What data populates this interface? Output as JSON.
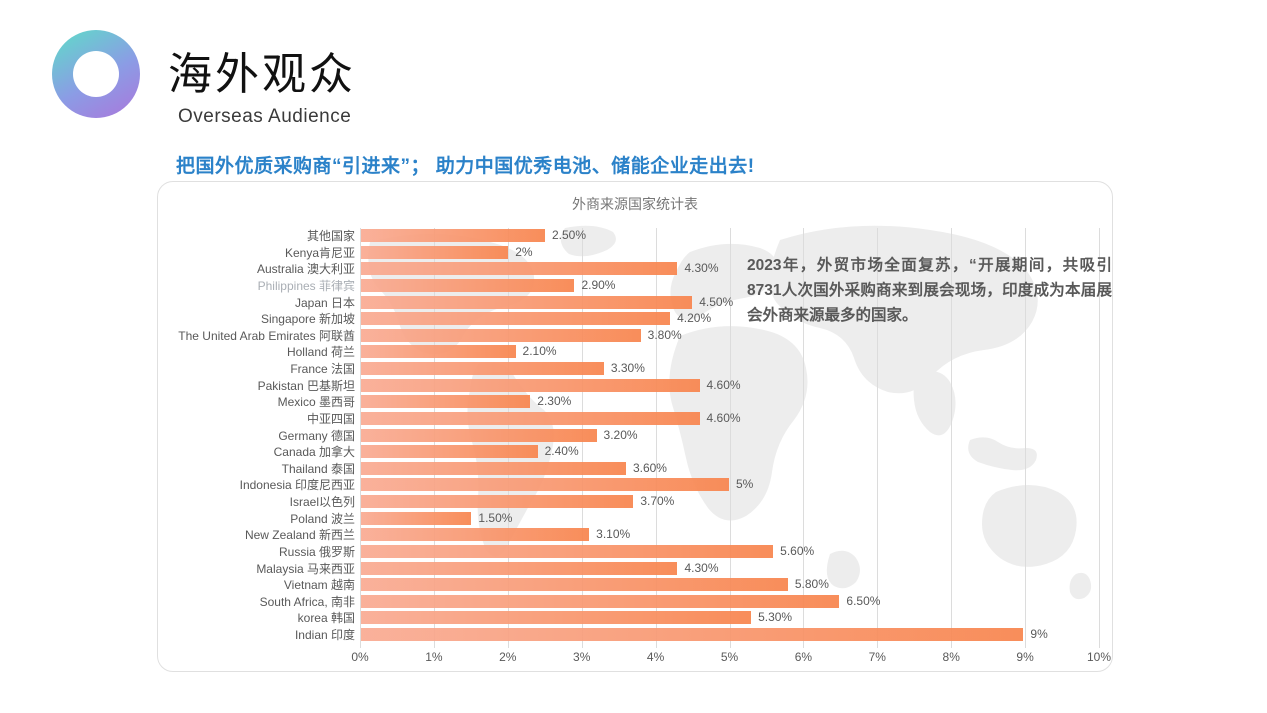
{
  "logo": {
    "gradient_start": "#64d4cc",
    "gradient_end": "#a57ddd"
  },
  "header": {
    "title": "海外观众",
    "subtitle": "Overseas Audience"
  },
  "headline": "把国外优质采购商“引进来”； 助力中国优秀电池、储能企业走出去!",
  "chart_data": {
    "type": "bar",
    "orientation": "horizontal",
    "title": "外商来源国家统计表",
    "categories": [
      "其他国家",
      "Kenya肯尼亚",
      "Australia 澳大利亚",
      "Philippines 菲律宾",
      "Japan 日本",
      "Singapore 新加坡",
      "The United Arab Emirates 阿联酋",
      "Holland 荷兰",
      "France 法国",
      "Pakistan 巴基斯坦",
      "Mexico 墨西哥",
      "中亚四国",
      "Germany 德国",
      "Canada 加拿大",
      "Thailand 泰国",
      "Indonesia 印度尼西亚",
      "Israel以色列",
      "Poland 波兰",
      "New Zealand 新西兰",
      "Russia 俄罗斯",
      "Malaysia 马来西亚",
      "Vietnam 越南",
      "South Africa, 南非",
      "korea 韩国",
      "Indian 印度"
    ],
    "values": [
      2.5,
      2,
      4.3,
      2.9,
      4.5,
      4.2,
      3.8,
      2.1,
      3.3,
      4.6,
      2.3,
      4.6,
      3.2,
      2.4,
      3.6,
      5,
      3.7,
      1.5,
      3.1,
      5.6,
      4.3,
      5.8,
      6.5,
      5.3,
      9
    ],
    "value_labels": [
      "2.50%",
      "2%",
      "4.30%",
      "2.90%",
      "4.50%",
      "4.20%",
      "3.80%",
      "2.10%",
      "3.30%",
      "4.60%",
      "2.30%",
      "4.60%",
      "3.20%",
      "2.40%",
      "3.60%",
      "5%",
      "3.70%",
      "1.50%",
      "3.10%",
      "5.60%",
      "4.30%",
      "5.80%",
      "6.50%",
      "5.30%",
      "9%"
    ],
    "muted_categories": [
      "Philippines 菲律宾"
    ],
    "xlim": [
      0,
      10
    ],
    "x_ticks": [
      "0%",
      "1%",
      "2%",
      "3%",
      "4%",
      "5%",
      "6%",
      "7%",
      "8%",
      "9%",
      "10%"
    ],
    "grid": true,
    "legend": "none",
    "bar_color_start": "#f9ab93",
    "bar_color_end": "#f8854e",
    "annotation": "2023年，外贸市场全面复苏，“开展期间，共吸引8731人次国外采购商来到展会现场，印度成为本届展会外商来源最多的国家。"
  }
}
